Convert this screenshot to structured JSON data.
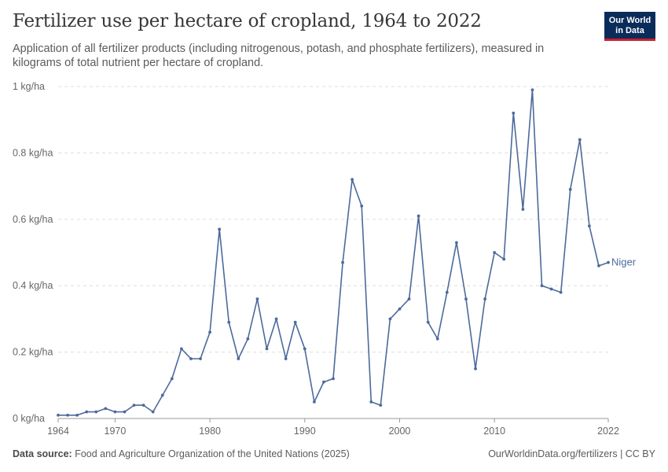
{
  "header": {
    "title": "Fertilizer use per hectare of cropland, 1964 to 2022",
    "subtitle": "Application of all fertilizer products (including nitrogenous, potash, and phosphate fertilizers), measured in kilograms of total nutrient per hectare of cropland."
  },
  "logo": {
    "line1": "Our World",
    "line2": "in Data",
    "bg_color": "#0a2c5a",
    "accent_color": "#c8202f"
  },
  "footer": {
    "source_label": "Data source:",
    "source_text": "Food and Agriculture Organization of the United Nations (2025)",
    "url": "OurWorldinData.org/fertilizers | CC BY"
  },
  "chart_data": {
    "type": "line",
    "title": "Fertilizer use per hectare of cropland, 1964 to 2022",
    "xlim": [
      1964,
      2022
    ],
    "ylim": [
      0,
      1
    ],
    "x_ticks": [
      1964,
      1970,
      1980,
      1990,
      2000,
      2010,
      2022
    ],
    "y_ticks": [
      {
        "value": 0,
        "label": "0 kg/ha"
      },
      {
        "value": 0.2,
        "label": "0.2 kg/ha"
      },
      {
        "value": 0.4,
        "label": "0.4 kg/ha"
      },
      {
        "value": 0.6,
        "label": "0.6 kg/ha"
      },
      {
        "value": 0.8,
        "label": "0.8 kg/ha"
      },
      {
        "value": 1,
        "label": "1 kg/ha"
      }
    ],
    "grid": "horizontal-dashed",
    "series": [
      {
        "name": "Niger",
        "color": "#4c6a9c",
        "x": [
          1964,
          1965,
          1966,
          1967,
          1968,
          1969,
          1970,
          1971,
          1972,
          1973,
          1974,
          1975,
          1976,
          1977,
          1978,
          1979,
          1980,
          1981,
          1982,
          1983,
          1984,
          1985,
          1986,
          1987,
          1988,
          1989,
          1990,
          1991,
          1992,
          1993,
          1994,
          1995,
          1996,
          1997,
          1998,
          1999,
          2000,
          2001,
          2002,
          2003,
          2004,
          2005,
          2006,
          2007,
          2008,
          2009,
          2010,
          2011,
          2012,
          2013,
          2014,
          2015,
          2016,
          2017,
          2018,
          2019,
          2020,
          2021,
          2022
        ],
        "values": [
          0.01,
          0.01,
          0.01,
          0.02,
          0.02,
          0.03,
          0.02,
          0.02,
          0.04,
          0.04,
          0.02,
          0.07,
          0.12,
          0.21,
          0.18,
          0.18,
          0.26,
          0.57,
          0.29,
          0.18,
          0.24,
          0.36,
          0.21,
          0.3,
          0.18,
          0.29,
          0.21,
          0.05,
          0.11,
          0.12,
          0.47,
          0.72,
          0.64,
          0.05,
          0.04,
          0.3,
          0.33,
          0.36,
          0.61,
          0.29,
          0.24,
          0.38,
          0.53,
          0.36,
          0.15,
          0.36,
          0.5,
          0.48,
          0.92,
          0.63,
          0.99,
          0.4,
          0.39,
          0.38,
          0.69,
          0.84,
          0.58,
          0.46,
          0.47
        ]
      }
    ]
  }
}
